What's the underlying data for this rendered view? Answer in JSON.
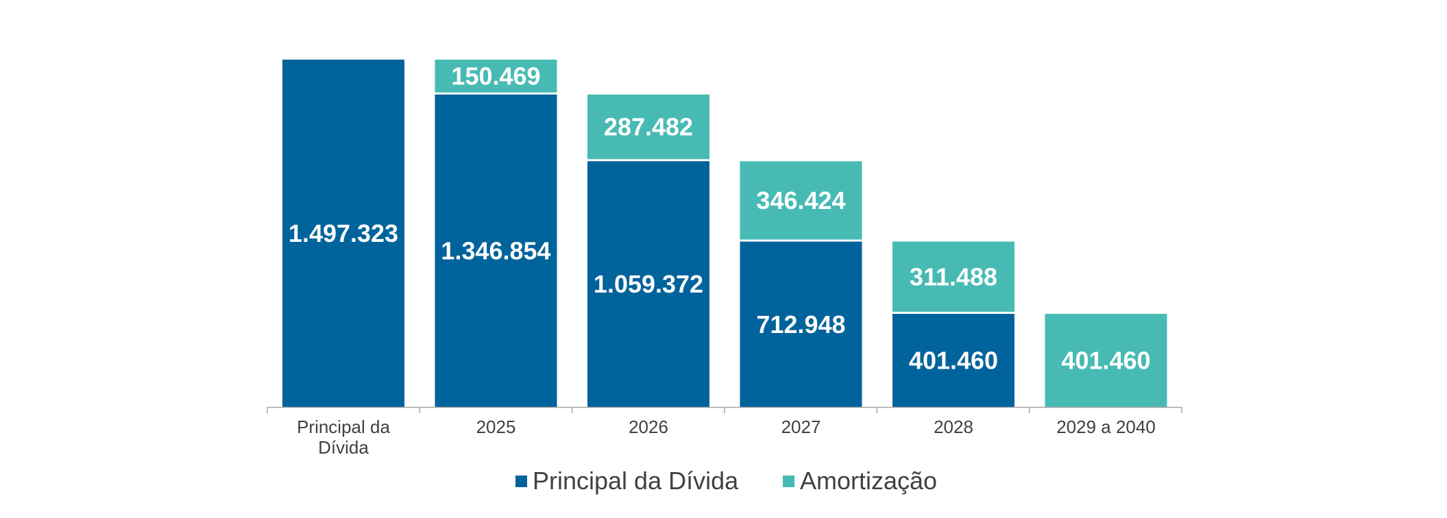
{
  "chart_data": {
    "type": "bar",
    "stacked": true,
    "categories": [
      [
        "Principal da",
        "Dívida"
      ],
      [
        "2025"
      ],
      [
        "2026"
      ],
      [
        "2027"
      ],
      [
        "2028"
      ],
      [
        "2029 a 2040"
      ]
    ],
    "series": [
      {
        "name": "Principal da Dívida",
        "color": "#00639b",
        "values": [
          1497323,
          1346854,
          1059372,
          712948,
          401460,
          0
        ],
        "labels": [
          "1.497.323",
          "1.346.854",
          "1.059.372",
          "712.948",
          "401.460",
          ""
        ]
      },
      {
        "name": "Amortização",
        "color": "#47bbb3",
        "values": [
          0,
          150469,
          287482,
          346424,
          311488,
          401460
        ],
        "labels": [
          "",
          "150.469",
          "287.482",
          "346.424",
          "311.488",
          "401.460"
        ]
      }
    ],
    "base": [
      0,
      0,
      0,
      0,
      0,
      0
    ],
    "ylim": [
      0,
      1497323
    ],
    "grid": false,
    "legend_position": "bottom"
  }
}
